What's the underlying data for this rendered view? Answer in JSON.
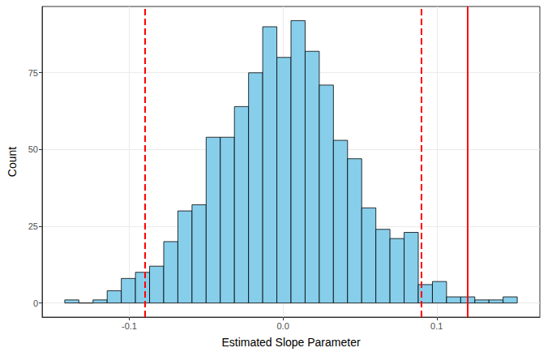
{
  "chart_data": {
    "type": "histogram",
    "x_label": "Estimated Slope Parameter",
    "y_label": "Count",
    "bins": [
      -0.142,
      -0.1328,
      -0.1236,
      -0.1144,
      -0.1052,
      -0.096,
      -0.0868,
      -0.0776,
      -0.0684,
      -0.0592,
      -0.05,
      -0.0408,
      -0.0316,
      -0.0224,
      -0.0132,
      -0.004,
      0.0052,
      0.0144,
      0.0236,
      0.0328,
      0.042,
      0.0512,
      0.0604,
      0.0696,
      0.0788,
      0.088,
      0.0972,
      0.1064,
      0.1156,
      0.1248,
      0.134,
      0.1432,
      0.1524
    ],
    "counts": [
      1,
      0,
      1,
      4,
      8,
      10,
      12,
      20,
      30,
      32,
      54,
      54,
      64,
      75,
      90,
      80,
      92,
      82,
      71,
      53,
      47,
      31,
      24,
      21,
      23,
      6,
      7,
      2,
      2,
      1,
      1,
      2
    ],
    "color": "#87ceeb",
    "vlines": [
      {
        "value": -0.087,
        "color": "#ff0000",
        "line_style": "dashed"
      },
      {
        "value": 0.085,
        "color": "#ff0000",
        "line_style": "dashed"
      },
      {
        "value": 0.119,
        "color": "#ff0000",
        "line_style": "solid"
      }
    ],
    "xlim": [
      -0.1567,
      0.1671
    ],
    "ylim": [
      -4.6,
      96.6
    ],
    "xticks": [
      -0.1,
      {
        "value": 0,
        "label": "0.0"
      },
      0.1
    ],
    "yticks": [
      0,
      25,
      50,
      75
    ],
    "grid": true
  }
}
